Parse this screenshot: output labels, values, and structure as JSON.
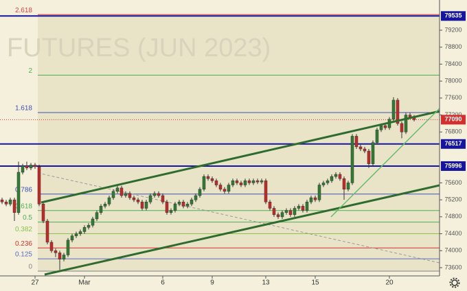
{
  "chart_data": {
    "type": "candlestick",
    "watermark": "FUTURES (JUN 2023)",
    "categories": [
      null,
      null,
      null,
      null,
      null,
      null,
      null,
      null,
      "27",
      null,
      null,
      null,
      null,
      null,
      null,
      null,
      null,
      null,
      null,
      null,
      "Mar",
      null,
      null,
      null,
      null,
      null,
      null,
      null,
      null,
      null,
      null,
      null,
      null,
      null,
      null,
      null,
      null,
      null,
      null,
      "6",
      null,
      null,
      null,
      null,
      null,
      null,
      null,
      null,
      null,
      null,
      null,
      "9",
      null,
      null,
      null,
      null,
      null,
      null,
      null,
      null,
      null,
      null,
      null,
      null,
      "13",
      null,
      null,
      null,
      null,
      null,
      null,
      null,
      null,
      null,
      null,
      null,
      "15",
      null,
      null,
      null,
      null,
      null,
      null,
      null,
      null,
      null,
      null,
      null,
      null,
      null,
      null,
      null,
      null,
      null,
      "20",
      null,
      null,
      null,
      null,
      null,
      null
    ],
    "open": [
      75200,
      75150,
      75100,
      75200,
      74900,
      75850,
      76000,
      75950,
      76020,
      75980,
      75100,
      74700,
      74200,
      74000,
      73950,
      73800,
      73900,
      74250,
      74350,
      74400,
      74450,
      74550,
      74600,
      74750,
      74900,
      75050,
      75100,
      75250,
      75400,
      75480,
      75300,
      75350,
      75250,
      75200,
      75150,
      75000,
      75150,
      75300,
      75350,
      75300,
      75150,
      74900,
      74950,
      75100,
      75150,
      75050,
      75100,
      75200,
      75300,
      75450,
      75750,
      75700,
      75650,
      75550,
      75450,
      75400,
      75550,
      75650,
      75600,
      75550,
      75650,
      75600,
      75650,
      75620,
      75650,
      75150,
      75000,
      74850,
      74800,
      74900,
      74950,
      74850,
      75000,
      75050,
      74950,
      75150,
      75250,
      75200,
      75550,
      75600,
      75650,
      75750,
      75800,
      75700,
      75450,
      75600,
      76700,
      76450,
      76400,
      76350,
      76050,
      76550,
      76850,
      76950,
      76900,
      77100,
      77550,
      77000,
      76800,
      77200,
      77150
    ],
    "high": [
      75250,
      75200,
      75250,
      75250,
      76100,
      76050,
      76100,
      76070,
      76070,
      76030,
      75150,
      74750,
      74250,
      74050,
      74000,
      73950,
      74300,
      74400,
      74450,
      74500,
      74600,
      74650,
      74800,
      74950,
      75100,
      75150,
      75300,
      75450,
      75530,
      75530,
      75400,
      75400,
      75300,
      75250,
      75200,
      75200,
      75350,
      75400,
      75400,
      75350,
      75200,
      75000,
      75150,
      75200,
      75200,
      75150,
      75250,
      75350,
      75500,
      75800,
      75800,
      75750,
      75700,
      75600,
      75500,
      75600,
      75700,
      75700,
      75650,
      75700,
      75700,
      75700,
      75700,
      75700,
      75700,
      75200,
      75050,
      74900,
      74950,
      75000,
      75000,
      75050,
      75100,
      75100,
      75200,
      75300,
      75300,
      75600,
      75650,
      75700,
      75800,
      75850,
      75850,
      75750,
      75650,
      76750,
      76750,
      76500,
      76450,
      76400,
      76600,
      76900,
      77000,
      77000,
      77150,
      77620,
      77600,
      77050,
      77250,
      77250,
      77200
    ],
    "low": [
      75100,
      75050,
      75050,
      74700,
      74850,
      75800,
      75900,
      75900,
      75930,
      75050,
      74650,
      74150,
      73950,
      73850,
      73550,
      73750,
      73850,
      74200,
      74300,
      74350,
      74400,
      74500,
      74550,
      74700,
      74850,
      75000,
      75050,
      75200,
      75350,
      75250,
      75250,
      75200,
      75150,
      75100,
      74950,
      74950,
      75100,
      75250,
      75250,
      75100,
      74850,
      74850,
      74900,
      75050,
      75000,
      75000,
      75050,
      75150,
      75250,
      75400,
      75650,
      75600,
      75500,
      75400,
      75350,
      75350,
      75500,
      75550,
      75500,
      75500,
      75550,
      75550,
      75570,
      75570,
      75100,
      74950,
      74800,
      74750,
      74750,
      74850,
      74800,
      74800,
      74950,
      74900,
      74900,
      75100,
      75150,
      75150,
      75500,
      75550,
      75600,
      75700,
      75650,
      75200,
      75400,
      75550,
      76400,
      76350,
      76300,
      75950,
      76000,
      76500,
      76800,
      76850,
      76850,
      77050,
      76950,
      76650,
      76750,
      77100,
      77050
    ],
    "close": [
      75150,
      75100,
      75200,
      74900,
      75850,
      76000,
      75950,
      76020,
      75980,
      75100,
      74700,
      74200,
      74000,
      73950,
      73800,
      73900,
      74250,
      74350,
      74400,
      74450,
      74550,
      74600,
      74750,
      74900,
      75050,
      75100,
      75250,
      75400,
      75480,
      75300,
      75350,
      75250,
      75200,
      75150,
      75000,
      75150,
      75300,
      75350,
      75300,
      75150,
      74900,
      74950,
      75100,
      75150,
      75050,
      75100,
      75200,
      75300,
      75450,
      75750,
      75700,
      75650,
      75550,
      75450,
      75400,
      75550,
      75650,
      75600,
      75550,
      75650,
      75600,
      75650,
      75620,
      75650,
      75150,
      75000,
      74850,
      74800,
      74900,
      74950,
      74850,
      75000,
      75050,
      74950,
      75150,
      75250,
      75200,
      75550,
      75600,
      75650,
      75750,
      75800,
      75700,
      75450,
      75600,
      76700,
      76450,
      76400,
      76350,
      76050,
      76550,
      76850,
      76950,
      76900,
      77100,
      77550,
      77000,
      76800,
      77200,
      77150,
      77090
    ],
    "up_color": "#2f7d32",
    "down_color": "#c62828",
    "ylim": [
      73406,
      79912
    ],
    "yticks": [
      73600,
      74000,
      74400,
      74800,
      75200,
      75600,
      76800,
      77200,
      77600,
      78000,
      78400,
      78800,
      79200
    ],
    "fib_levels": [
      {
        "ratio": 2.618,
        "price": 79568,
        "color": "#d84343"
      },
      {
        "ratio": 2,
        "price": 78140,
        "color": "#4caf50"
      },
      {
        "ratio": 1.618,
        "price": 77258,
        "color": "#3f51b5"
      },
      {
        "ratio": 0.786,
        "price": 75336,
        "color": "#3f51b5"
      },
      {
        "ratio": 0.618,
        "price": 74948,
        "color": "#4caf50"
      },
      {
        "ratio": 0.5,
        "price": 74675,
        "color": "#4caf50"
      },
      {
        "ratio": 0.382,
        "price": 74402,
        "color": "#8bc34a"
      },
      {
        "ratio": 0.236,
        "price": 74065,
        "color": "#d32f2f"
      },
      {
        "ratio": 0.125,
        "price": 73809,
        "color": "#5c6bc0"
      },
      {
        "ratio": 0,
        "price": 73520,
        "color": "#888888"
      }
    ],
    "price_levels": [
      {
        "value": 79535,
        "color": "#1515a0"
      },
      {
        "value": 76517,
        "color": "#1515a0"
      },
      {
        "value": 75996,
        "color": "#1515a0"
      }
    ],
    "last_price": {
      "value": 77090,
      "color": "#d32f2f"
    }
  }
}
